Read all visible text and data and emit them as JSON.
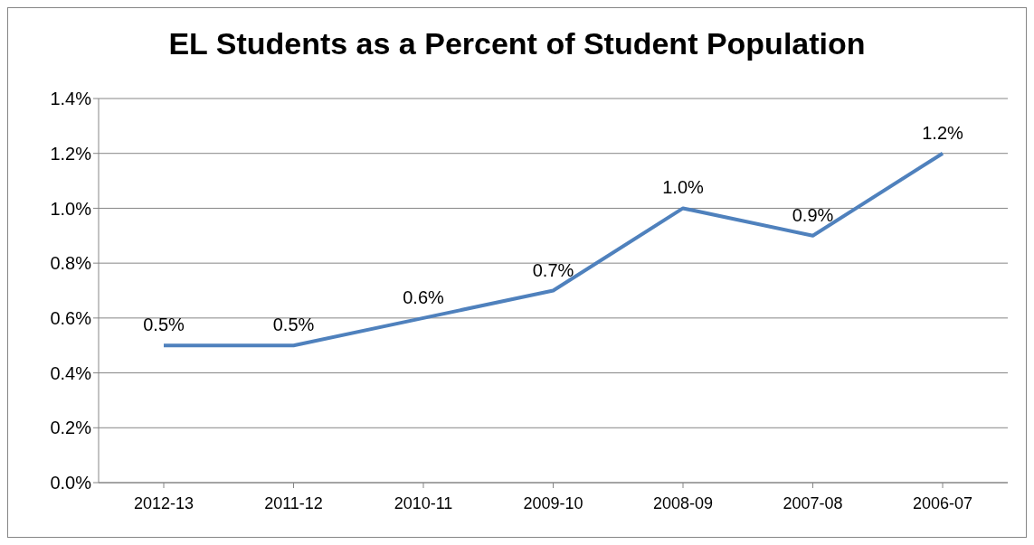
{
  "chart_data": {
    "type": "line",
    "title": "EL Students as a Percent of Student Population",
    "categories": [
      "2012-13",
      "2011-12",
      "2010-11",
      "2009-10",
      "2008-09",
      "2007-08",
      "2006-07"
    ],
    "series": [
      {
        "color": "#4f81bd",
        "values": [
          0.5,
          0.5,
          0.6,
          0.7,
          1.0,
          0.9,
          1.2
        ],
        "value_labels": [
          "0.5%",
          "0.5%",
          "0.6%",
          "0.7%",
          "1.0%",
          "0.9%",
          "1.2%"
        ]
      }
    ],
    "ylim": [
      0,
      1.4
    ],
    "yticks": [
      {
        "value": 0,
        "label": "0.0%"
      },
      {
        "value": 0.2,
        "label": "0.2%"
      },
      {
        "value": 0.4,
        "label": "0.4%"
      },
      {
        "value": 0.6,
        "label": "0.6%"
      },
      {
        "value": 0.8,
        "label": "0.8%"
      },
      {
        "value": 1.0,
        "label": "1.0%"
      },
      {
        "value": 1.2,
        "label": "1.2%"
      },
      {
        "value": 1.4,
        "label": "1.4%"
      }
    ],
    "grid": "y",
    "legend": false,
    "marker": "none",
    "line_style": "solid"
  }
}
